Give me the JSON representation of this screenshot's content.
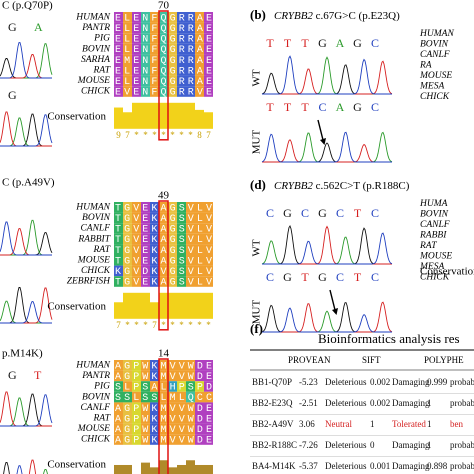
{
  "left_panels": [
    {
      "title": "C (p.Q70P)",
      "rows": [
        [
          "G",
          "A"
        ],
        [
          "G"
        ]
      ]
    },
    {
      "title": "C (p.A49V)",
      "rows": []
    },
    {
      "title": "p.M14K)",
      "rows": [
        [
          "G",
          "T"
        ]
      ]
    }
  ],
  "alignments": [
    {
      "position": "70",
      "species": [
        "HUMAN",
        "PANTR",
        "PIG",
        "BOVIN",
        "SARHA",
        "RAT",
        "MOUSE",
        "CHICK"
      ],
      "sequences": [
        "ELENFQGRRAE",
        "ELENFQGRRAE",
        "ELENFQGRRAE",
        "ELENFQGRRAE",
        "EMENFQGRRAE",
        "ELENFQGRRAE",
        "ELENFQGRRAE",
        "EVENFQGRRVE"
      ],
      "conservation_label": "Conservation",
      "conservation": [
        "9",
        "7",
        "*",
        "*",
        "*",
        "*",
        "*",
        "*",
        "*",
        "8",
        "7"
      ]
    },
    {
      "position": "49",
      "species": [
        "HUMAN",
        "BOVIN",
        "CANLF",
        "RABBIT",
        "RAT",
        "MOUSE",
        "CHICK",
        "ZEBRFISH"
      ],
      "sequences": [
        "TGVEKAGSVLV",
        "TGVEKAGSVLV",
        "TGVEKAGSVLV",
        "TGVEKAGSVLV",
        "TGVEKAGSVLV",
        "TGVEKAGSVLV",
        "KGVDKVGSVLV",
        "TGVEKAGSVLV"
      ],
      "conservation_label": "Conservation",
      "conservation": [
        "7",
        "*",
        "*",
        "*",
        "7",
        "*",
        "*",
        "*",
        "*",
        "*",
        "*"
      ]
    },
    {
      "position": "14",
      "species": [
        "HUMAN",
        "PANTR",
        "PIG",
        "BOVIN",
        "CANLF",
        "RAT",
        "MOUSE",
        "CHICK"
      ],
      "sequences": [
        "AGPWKMVVWDE",
        "AGPWKMVVWDE",
        "SLPSALHPSPD",
        "SSLSSLMLQCC",
        "AGPWKMVVWDE",
        "AGPWKMVVWDE",
        "AGPWKMVVWDE",
        "AGPWKMVVWDE"
      ],
      "conservation_label": "Conservation",
      "conservation": [
        "5",
        "5",
        "1",
        "6",
        "4",
        "7",
        "4",
        "5",
        "7",
        "5",
        "5"
      ]
    }
  ],
  "right_panels": [
    {
      "letter": "(b)",
      "gene": "CRYBB2",
      "title": " c.67G>C (p.E23Q)",
      "wt_label": "WT",
      "mut_label": "MUT",
      "wt_bases": [
        "T",
        "T",
        "T",
        "G",
        "A",
        "G",
        "C"
      ],
      "mut_bases": [
        "T",
        "T",
        "T",
        "C",
        "A",
        "G",
        "C"
      ],
      "species": [
        "HUMAN",
        "BOVIN",
        "CANLF",
        "RA",
        "MOUSE",
        "MESA",
        "CHICK"
      ]
    },
    {
      "letter": "(d)",
      "gene": "CRYBB2",
      "title": " c.562C>T (p.R188C)",
      "wt_label": "WT",
      "mut_label": "MUT",
      "wt_bases": [
        "C",
        "G",
        "C",
        "G",
        "C",
        "T",
        "C"
      ],
      "mut_bases": [
        "C",
        "G",
        "T",
        "G",
        "C",
        "T",
        "C"
      ],
      "species": [
        "HUMA",
        "BOVIN",
        "CANLF",
        "RABBI",
        "RAT",
        "MOUSE",
        "MESA",
        "CHICK"
      ],
      "conservation_label": "Conservation"
    }
  ],
  "table": {
    "letter": "(f)",
    "title": "Bioinformatics analysis res",
    "headers": [
      "PROVEAN",
      "SIFT",
      "POLYPHE"
    ],
    "rows": [
      [
        "BB1-Q70P",
        "-5.23",
        "Deleterious",
        "0.002",
        "Damaging",
        "0.999",
        "probably"
      ],
      [
        "BB2-E23Q",
        "-2.51",
        "Deleterious",
        "0.002",
        "Damaging",
        "1",
        "probably"
      ],
      [
        "BB2-A49V",
        "3.06",
        "Neutral",
        "1",
        "Tolerated",
        "1",
        "ben"
      ],
      [
        "BB2-R188C",
        "-7.26",
        "Deleterious",
        "0",
        "Damaging",
        "1",
        "probably"
      ],
      [
        "BA4-M14K",
        "-5.37",
        "Deleterious",
        "0.001",
        "Damaging",
        "0.898",
        "probably"
      ]
    ]
  }
}
